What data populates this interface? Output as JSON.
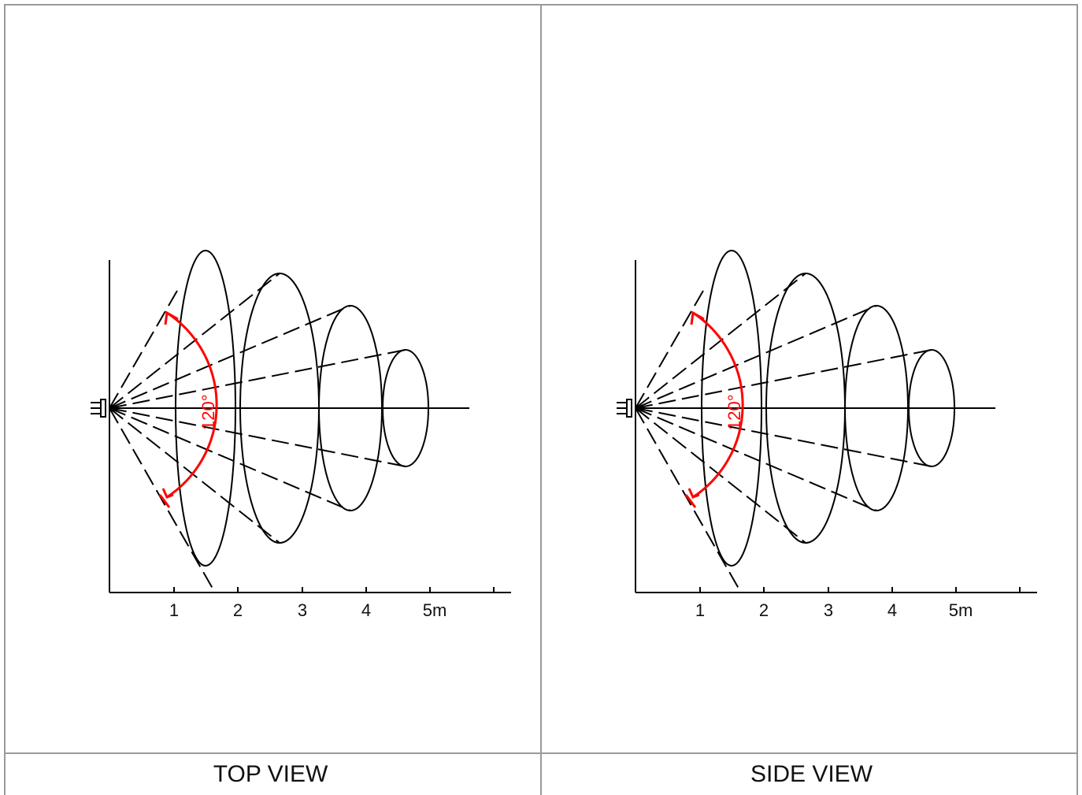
{
  "views": [
    {
      "caption": "TOP VIEW",
      "detection_angle_label": "120°",
      "axis_ticks": [
        "1",
        "2",
        "3",
        "4",
        "5m"
      ]
    },
    {
      "caption": "SIDE VIEW",
      "detection_angle_label": "120°",
      "axis_ticks": [
        "1",
        "2",
        "3",
        "4",
        "5m"
      ]
    }
  ],
  "colors": {
    "angle_arc": "#ff0000",
    "lines": "#000000",
    "frame": "#9a9a9a"
  }
}
